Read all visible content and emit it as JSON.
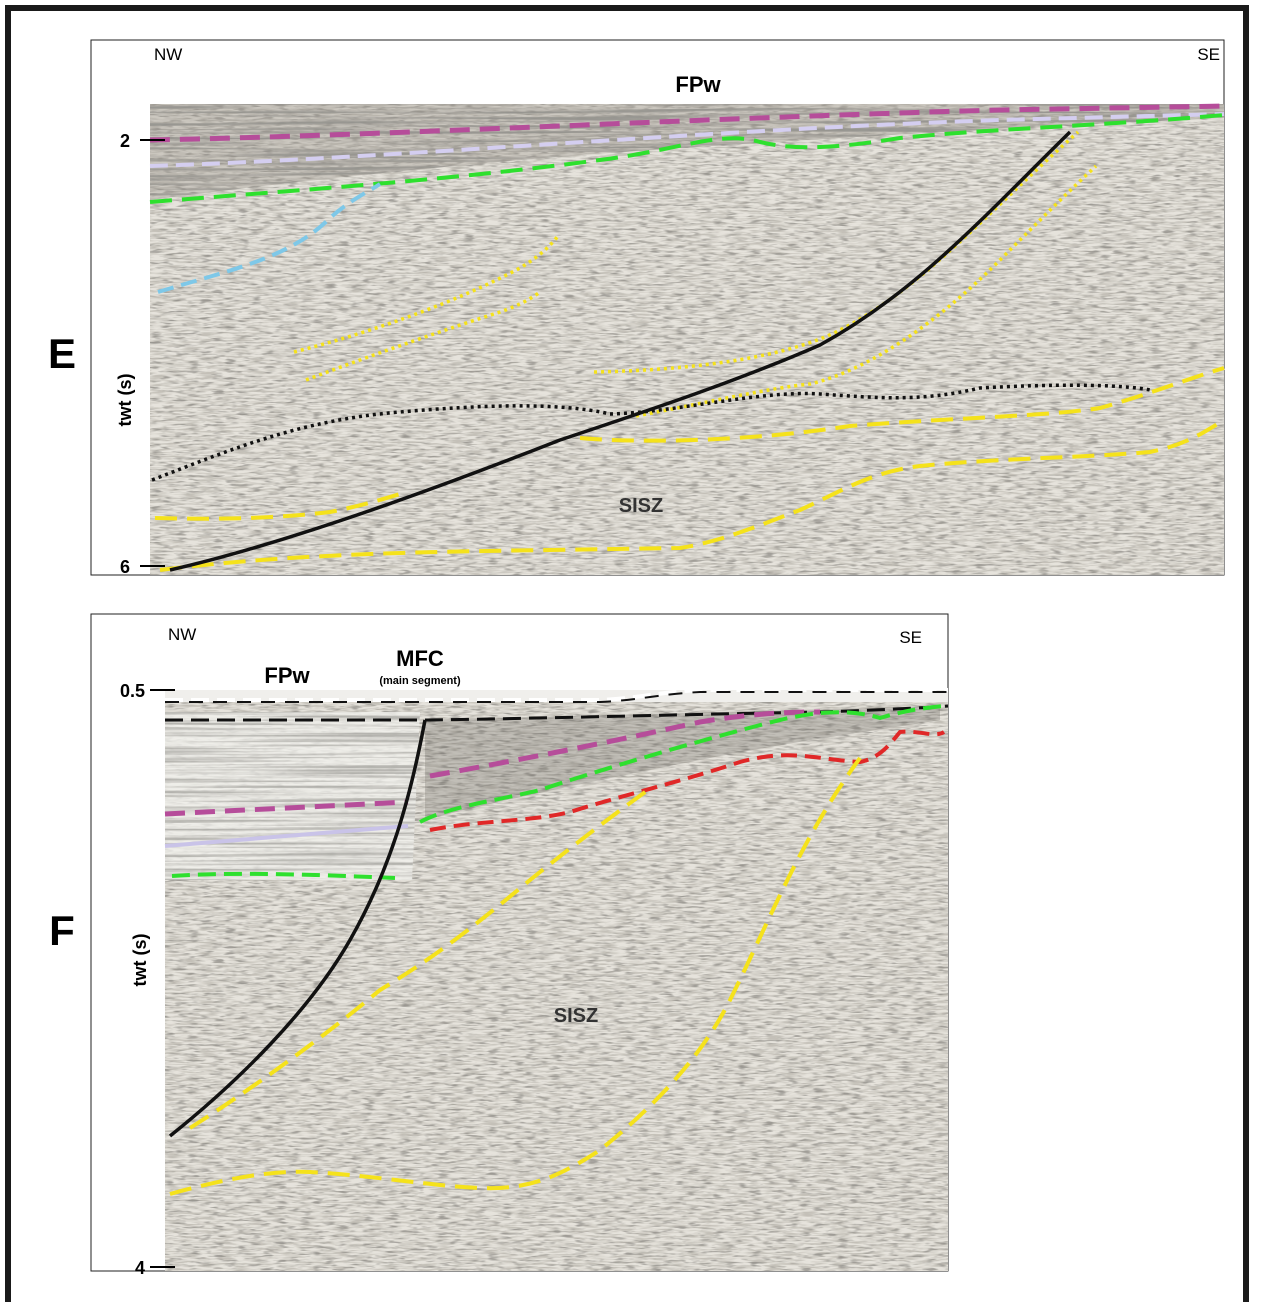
{
  "panels": [
    {
      "letter": "E",
      "nw": "NW",
      "se": "SE",
      "labels": [
        "FPw",
        "SISZ"
      ],
      "yaxis_label": "twt (s)",
      "tick_top": "2",
      "tick_bottom": "6"
    },
    {
      "letter": "F",
      "nw": "NW",
      "se": "SE",
      "labels": [
        "FPw",
        "MFC",
        "(main segment)",
        "SISZ"
      ],
      "yaxis_label": "twt (s)",
      "tick_top": "0.5",
      "tick_bottom": "4"
    }
  ],
  "colors": {
    "fault": "#111111",
    "yellow": "#f5e21b",
    "green": "#2ee02e",
    "magenta": "#b64d9a",
    "lavender": "#c9c3e8",
    "cyan": "#7ec8e8",
    "red": "#e02828",
    "black_dashed": "#111111"
  }
}
